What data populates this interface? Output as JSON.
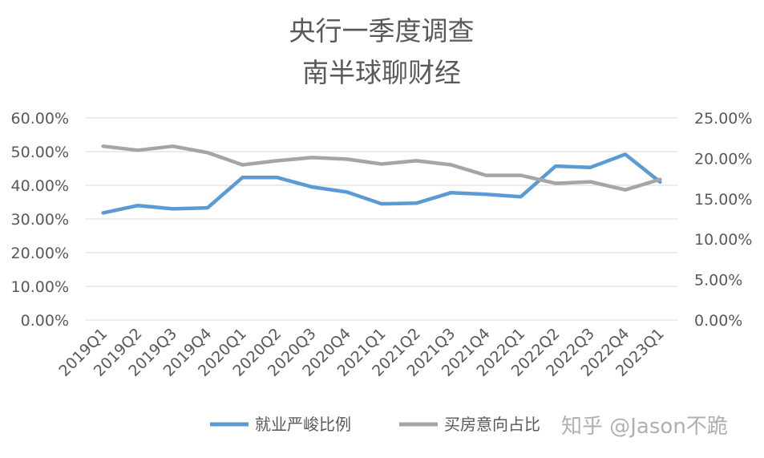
{
  "chart_data": {
    "type": "line",
    "title": "央行一季度调查",
    "subtitle": "南半球聊财经",
    "categories": [
      "2019Q1",
      "2019Q2",
      "2019Q3",
      "2019Q4",
      "2020Q1",
      "2020Q2",
      "2020Q3",
      "2020Q4",
      "2021Q1",
      "2021Q2",
      "2021Q3",
      "2021Q4",
      "2022Q1",
      "2022Q2",
      "2022Q3",
      "2022Q4",
      "2023Q1"
    ],
    "series": [
      {
        "name": "就业严峻比例",
        "axis": "left",
        "color": "#5b9bd5",
        "values": [
          31.8,
          34.0,
          33.0,
          33.3,
          42.3,
          42.3,
          39.5,
          38.0,
          34.5,
          34.7,
          37.8,
          37.3,
          36.6,
          45.7,
          45.3,
          49.2,
          41.0
        ]
      },
      {
        "name": "买房意向占比",
        "axis": "right",
        "color": "#a5a5a5",
        "values": [
          21.5,
          21.0,
          21.5,
          20.7,
          19.2,
          19.7,
          20.1,
          19.9,
          19.3,
          19.7,
          19.2,
          17.9,
          17.9,
          16.9,
          17.1,
          16.1,
          17.4
        ]
      }
    ],
    "y_left": {
      "ylim": [
        0,
        60
      ],
      "ticks": [
        "0.00%",
        "10.00%",
        "20.00%",
        "30.00%",
        "40.00%",
        "50.00%",
        "60.00%"
      ]
    },
    "y_right": {
      "ylim": [
        0,
        25
      ],
      "ticks": [
        "0.00%",
        "5.00%",
        "10.00%",
        "15.00%",
        "20.00%",
        "25.00%"
      ]
    },
    "grid": true,
    "legend_position": "bottom"
  },
  "watermark": "知乎 @Jason不跪"
}
